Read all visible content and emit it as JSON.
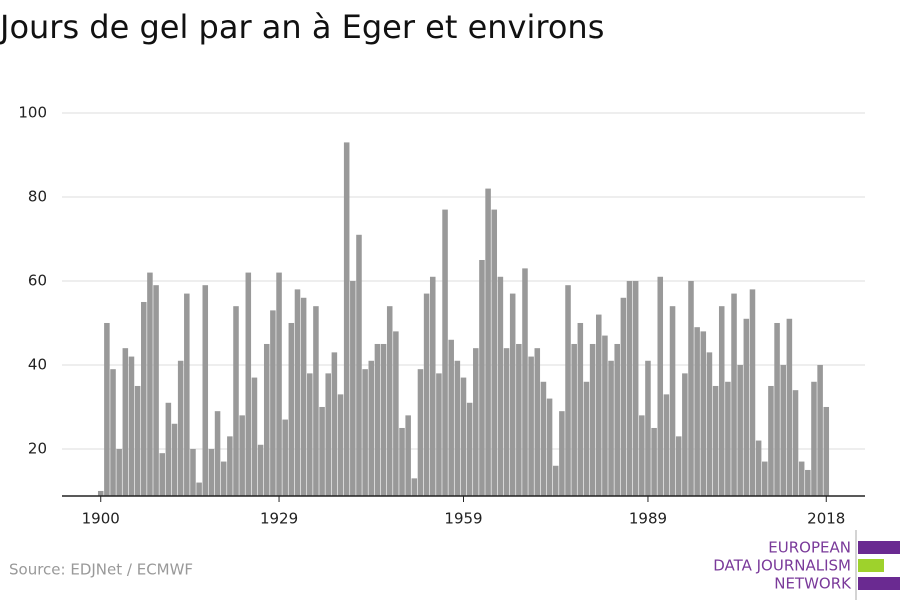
{
  "chart_data": {
    "type": "bar",
    "title": "Jours de gel par an à Eger et environs",
    "x": [
      1900,
      1901,
      1902,
      1903,
      1904,
      1905,
      1906,
      1907,
      1908,
      1909,
      1910,
      1911,
      1912,
      1913,
      1914,
      1915,
      1916,
      1917,
      1918,
      1919,
      1920,
      1921,
      1922,
      1923,
      1924,
      1925,
      1926,
      1927,
      1928,
      1929,
      1930,
      1931,
      1932,
      1933,
      1934,
      1935,
      1936,
      1937,
      1938,
      1939,
      1940,
      1941,
      1942,
      1943,
      1944,
      1945,
      1946,
      1947,
      1948,
      1949,
      1950,
      1951,
      1952,
      1953,
      1954,
      1955,
      1956,
      1957,
      1958,
      1959,
      1960,
      1961,
      1962,
      1963,
      1964,
      1965,
      1966,
      1967,
      1968,
      1969,
      1970,
      1971,
      1972,
      1973,
      1974,
      1975,
      1976,
      1977,
      1978,
      1979,
      1980,
      1981,
      1982,
      1983,
      1984,
      1985,
      1986,
      1987,
      1988,
      1989,
      1990,
      1991,
      1992,
      1993,
      1994,
      1995,
      1996,
      1997,
      1998,
      1999,
      2000,
      2001,
      2002,
      2003,
      2004,
      2005,
      2006,
      2007,
      2008,
      2009,
      2010,
      2011,
      2012,
      2013,
      2014,
      2015,
      2016,
      2017,
      2018
    ],
    "values": [
      10,
      50,
      39,
      20,
      44,
      42,
      35,
      55,
      62,
      59,
      19,
      31,
      26,
      41,
      57,
      20,
      12,
      59,
      20,
      29,
      17,
      23,
      54,
      28,
      62,
      37,
      21,
      45,
      53,
      62,
      27,
      50,
      58,
      56,
      38,
      54,
      30,
      38,
      43,
      33,
      93,
      60,
      71,
      39,
      41,
      45,
      45,
      54,
      48,
      25,
      28,
      13,
      39,
      57,
      61,
      38,
      77,
      46,
      41,
      37,
      31,
      44,
      65,
      82,
      77,
      61,
      44,
      57,
      45,
      63,
      42,
      44,
      36,
      32,
      16,
      29,
      59,
      45,
      50,
      36,
      45,
      52,
      47,
      41,
      45,
      56,
      60,
      60,
      28,
      41,
      25,
      61,
      33,
      54,
      23,
      38,
      60,
      49,
      48,
      43,
      35,
      54,
      36,
      57,
      40,
      51,
      58,
      22,
      17,
      35,
      50,
      40,
      51,
      34,
      17,
      15,
      36,
      40,
      30
    ],
    "color": "#999999",
    "xlim": [
      1893.7,
      2024.3
    ],
    "xticks": [
      1900,
      1929,
      1959,
      1989,
      2018
    ],
    "ylim": [
      8.8,
      100
    ],
    "yticks": [
      20,
      40,
      60,
      80,
      100
    ],
    "grid": true,
    "source": "Source: EDJNet / ECMWF",
    "logo": [
      "EUROPEAN",
      "DATA JOURNALISM",
      "NETWORK"
    ]
  }
}
